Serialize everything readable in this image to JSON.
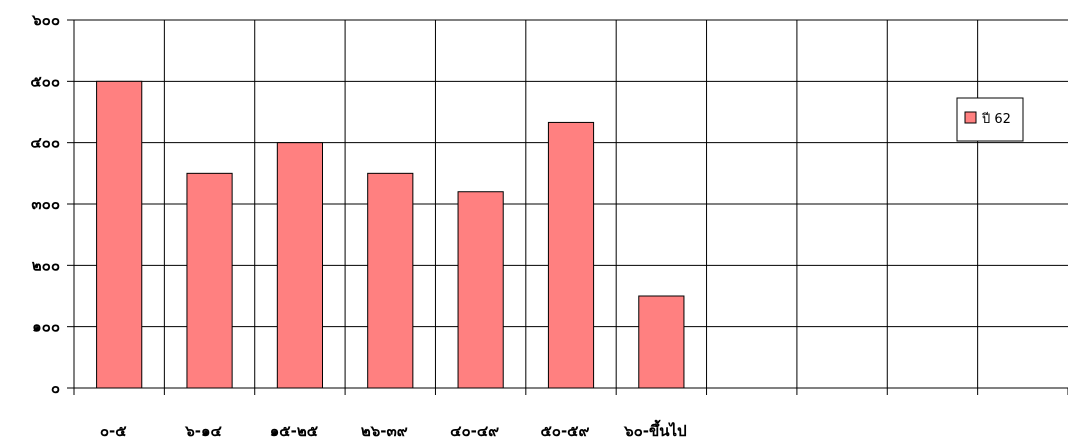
{
  "chart_data": {
    "type": "bar",
    "categories": [
      "๐-๕",
      "๖-๑๔",
      "๑๕-๒๕",
      "๒๖-๓๙",
      "๔๐-๔๙",
      "๕๐-๕๙",
      "๖๐-ขึ้นไป",
      "",
      "",
      "",
      ""
    ],
    "series": [
      {
        "name": "ปี 62",
        "values": [
          500,
          350,
          400,
          350,
          320,
          433,
          150,
          null,
          null,
          null,
          null
        ]
      }
    ],
    "y_ticks": [
      {
        "value": 0,
        "label": "๐"
      },
      {
        "value": 100,
        "label": "๑๐๐"
      },
      {
        "value": 200,
        "label": "๒๐๐"
      },
      {
        "value": 300,
        "label": "๓๐๐"
      },
      {
        "value": 400,
        "label": "๔๐๐"
      },
      {
        "value": 500,
        "label": "๕๐๐"
      },
      {
        "value": 600,
        "label": "๖๐๐"
      }
    ],
    "ylim": [
      0,
      600
    ],
    "grid": true,
    "legend_position": "right",
    "colors": {
      "bar": "#ff8080",
      "bar_stroke": "#000000",
      "grid": "#000000"
    }
  }
}
